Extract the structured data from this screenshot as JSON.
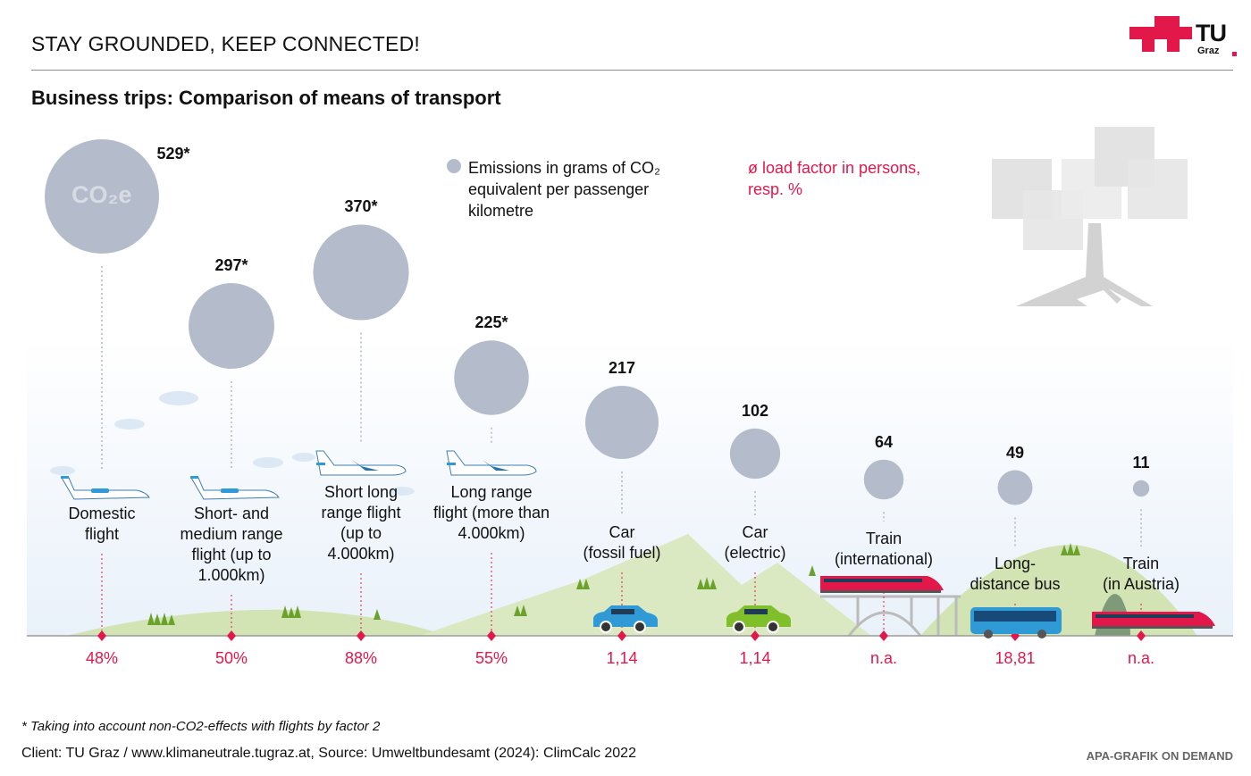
{
  "header": {
    "title": "STAY GROUNDED,  KEEP CONNECTED!",
    "logo_text": "TU",
    "logo_subtext": "Graz",
    "logo_color": "#e2184b"
  },
  "subtitle": "Business trips: Comparison of means of transport",
  "legend": {
    "emissions_label": "Emissions in grams of CO₂ equivalent per passenger kilometre",
    "load_factor_label": "ø load factor in persons, resp. %",
    "bubble_color": "#b4bccb",
    "load_factor_color": "#e2184b"
  },
  "bubble_inner_label": "CO₂e",
  "chart_data": {
    "type": "bubble",
    "title": "Business trips: Comparison of means of transport",
    "unit": "g CO2e per passenger kilometre",
    "categories": [
      "Domestic flight",
      "Short- and medium range flight (up to 1.000km)",
      "Short long range flight (up to 4.000km)",
      "Long range flight (more than 4.000km)",
      "Car (fossil fuel)",
      "Car (electric)",
      "Train (international)",
      "Long-distance bus",
      "Train (in Austria)"
    ],
    "series": [
      {
        "name": "Emissions (g CO2e/pkm)",
        "values": [
          529,
          297,
          370,
          225,
          217,
          102,
          64,
          49,
          11
        ]
      },
      {
        "name": "ø load factor",
        "values": [
          "48%",
          "50%",
          "88%",
          "55%",
          "1,14",
          "1,14",
          "n.a.",
          "18,81",
          "n.a."
        ]
      }
    ],
    "value_labels": [
      "529*",
      "297*",
      "370*",
      "225*",
      "217",
      "102",
      "64",
      "49",
      "11"
    ],
    "label_lines": [
      [
        "Domestic",
        "flight"
      ],
      [
        "Short- and",
        "medium range",
        "flight (up to",
        "1.000km)"
      ],
      [
        "Short long",
        "range flight",
        "(up to",
        "4.000km)"
      ],
      [
        "Long range",
        "flight (more than",
        "4.000km)"
      ],
      [
        "Car",
        "(fossil fuel)"
      ],
      [
        "Car",
        "(electric)"
      ],
      [
        "Train",
        "(international)"
      ],
      [
        "Long-",
        "distance bus"
      ],
      [
        "Train",
        "(in Austria)"
      ]
    ],
    "vehicles": [
      "small-plane",
      "small-plane",
      "jet",
      "jet",
      "car-blue",
      "car-green",
      "train",
      "bus",
      "train"
    ]
  },
  "footnote": "* Taking into account non-CO2-effects with flights by factor 2",
  "source": "Client: TU Graz / www.klimaneutrale.tugraz.at, Source: Umweltbundesamt (2024): ClimCalc 2022",
  "credit": "APA-GRAFIK ON DEMAND"
}
